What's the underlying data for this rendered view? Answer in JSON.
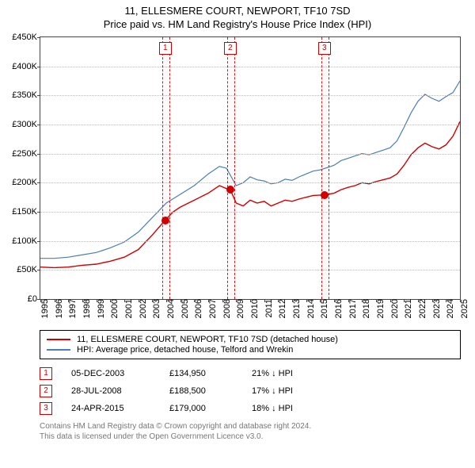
{
  "title_main": "11, ELLESMERE COURT, NEWPORT, TF10 7SD",
  "title_sub": "Price paid vs. HM Land Registry's House Price Index (HPI)",
  "chart": {
    "type": "line",
    "background_color": "#ffffff",
    "grid_color": "#bbbbbb",
    "axis_color": "#444444",
    "y": {
      "min": 0,
      "max": 450,
      "ticks": [
        0,
        50,
        100,
        150,
        200,
        250,
        300,
        350,
        400,
        450
      ],
      "labels": [
        "£0",
        "£50K",
        "£100K",
        "£150K",
        "£200K",
        "£250K",
        "£300K",
        "£350K",
        "£400K",
        "£450K"
      ],
      "label_fontsize": 11
    },
    "x": {
      "min": 1995,
      "max": 2025,
      "ticks": [
        1995,
        1996,
        1997,
        1998,
        1999,
        2000,
        2001,
        2002,
        2003,
        2004,
        2005,
        2006,
        2007,
        2008,
        2009,
        2010,
        2011,
        2012,
        2013,
        2014,
        2015,
        2016,
        2017,
        2018,
        2019,
        2020,
        2021,
        2022,
        2023,
        2024,
        2025
      ],
      "label_fontsize": 11
    },
    "series": [
      {
        "name": "property",
        "label": "11, ELLESMERE COURT, NEWPORT, TF10 7SD (detached house)",
        "color": "#d00000",
        "line_width": 1.4,
        "data": [
          [
            1995,
            55
          ],
          [
            1996,
            54
          ],
          [
            1997,
            55
          ],
          [
            1998,
            58
          ],
          [
            1999,
            60
          ],
          [
            2000,
            65
          ],
          [
            2001,
            72
          ],
          [
            2002,
            85
          ],
          [
            2003,
            110
          ],
          [
            2003.9,
            135
          ],
          [
            2004.5,
            150
          ],
          [
            2005,
            158
          ],
          [
            2006,
            170
          ],
          [
            2007,
            182
          ],
          [
            2007.8,
            195
          ],
          [
            2008.3,
            190
          ],
          [
            2008.57,
            188.5
          ],
          [
            2009,
            165
          ],
          [
            2009.5,
            160
          ],
          [
            2010,
            170
          ],
          [
            2010.5,
            165
          ],
          [
            2011,
            168
          ],
          [
            2011.5,
            160
          ],
          [
            2012,
            165
          ],
          [
            2012.5,
            170
          ],
          [
            2013,
            168
          ],
          [
            2013.5,
            172
          ],
          [
            2014,
            175
          ],
          [
            2014.5,
            178
          ],
          [
            2015.31,
            179
          ],
          [
            2016,
            182
          ],
          [
            2016.5,
            188
          ],
          [
            2017,
            192
          ],
          [
            2017.5,
            195
          ],
          [
            2018,
            200
          ],
          [
            2018.5,
            198
          ],
          [
            2019,
            202
          ],
          [
            2019.5,
            205
          ],
          [
            2020,
            208
          ],
          [
            2020.5,
            215
          ],
          [
            2021,
            230
          ],
          [
            2021.5,
            248
          ],
          [
            2022,
            260
          ],
          [
            2022.5,
            268
          ],
          [
            2023,
            262
          ],
          [
            2023.5,
            258
          ],
          [
            2024,
            265
          ],
          [
            2024.5,
            280
          ],
          [
            2025,
            305
          ]
        ]
      },
      {
        "name": "hpi",
        "label": "HPI: Average price, detached house, Telford and Wrekin",
        "color": "#4a7ebb",
        "line_width": 1.2,
        "data": [
          [
            1995,
            70
          ],
          [
            1996,
            70
          ],
          [
            1997,
            72
          ],
          [
            1998,
            76
          ],
          [
            1999,
            80
          ],
          [
            2000,
            88
          ],
          [
            2001,
            98
          ],
          [
            2002,
            115
          ],
          [
            2003,
            140
          ],
          [
            2004,
            165
          ],
          [
            2005,
            180
          ],
          [
            2006,
            195
          ],
          [
            2007,
            215
          ],
          [
            2007.8,
            228
          ],
          [
            2008.3,
            225
          ],
          [
            2009,
            195
          ],
          [
            2009.5,
            200
          ],
          [
            2010,
            210
          ],
          [
            2010.5,
            205
          ],
          [
            2011,
            203
          ],
          [
            2011.5,
            198
          ],
          [
            2012,
            200
          ],
          [
            2012.5,
            206
          ],
          [
            2013,
            204
          ],
          [
            2013.5,
            210
          ],
          [
            2014,
            215
          ],
          [
            2014.5,
            220
          ],
          [
            2015,
            222
          ],
          [
            2015.5,
            226
          ],
          [
            2016,
            230
          ],
          [
            2016.5,
            238
          ],
          [
            2017,
            242
          ],
          [
            2017.5,
            246
          ],
          [
            2018,
            250
          ],
          [
            2018.5,
            248
          ],
          [
            2019,
            252
          ],
          [
            2019.5,
            256
          ],
          [
            2020,
            260
          ],
          [
            2020.5,
            272
          ],
          [
            2021,
            295
          ],
          [
            2021.5,
            320
          ],
          [
            2022,
            340
          ],
          [
            2022.5,
            352
          ],
          [
            2023,
            345
          ],
          [
            2023.5,
            340
          ],
          [
            2024,
            348
          ],
          [
            2024.5,
            355
          ],
          [
            2025,
            375
          ]
        ]
      }
    ],
    "events": [
      {
        "n": "1",
        "year": 2003.93,
        "band_color": "#d00000"
      },
      {
        "n": "2",
        "year": 2008.57,
        "band_color": "#d00000"
      },
      {
        "n": "3",
        "year": 2015.31,
        "band_color": "#d00000"
      }
    ],
    "sale_points": [
      {
        "year": 2003.93,
        "value": 135,
        "color": "#d00000"
      },
      {
        "year": 2008.57,
        "value": 188.5,
        "color": "#d00000"
      },
      {
        "year": 2015.31,
        "value": 179,
        "color": "#d00000"
      }
    ]
  },
  "sales": [
    {
      "n": "1",
      "date": "05-DEC-2003",
      "price": "£134,950",
      "diff": "21% ↓ HPI"
    },
    {
      "n": "2",
      "date": "28-JUL-2008",
      "price": "£188,500",
      "diff": "17% ↓ HPI"
    },
    {
      "n": "3",
      "date": "24-APR-2015",
      "price": "£179,000",
      "diff": "18% ↓ HPI"
    }
  ],
  "footnote_l1": "Contains HM Land Registry data © Crown copyright and database right 2024.",
  "footnote_l2": "This data is licensed under the Open Government Licence v3.0."
}
